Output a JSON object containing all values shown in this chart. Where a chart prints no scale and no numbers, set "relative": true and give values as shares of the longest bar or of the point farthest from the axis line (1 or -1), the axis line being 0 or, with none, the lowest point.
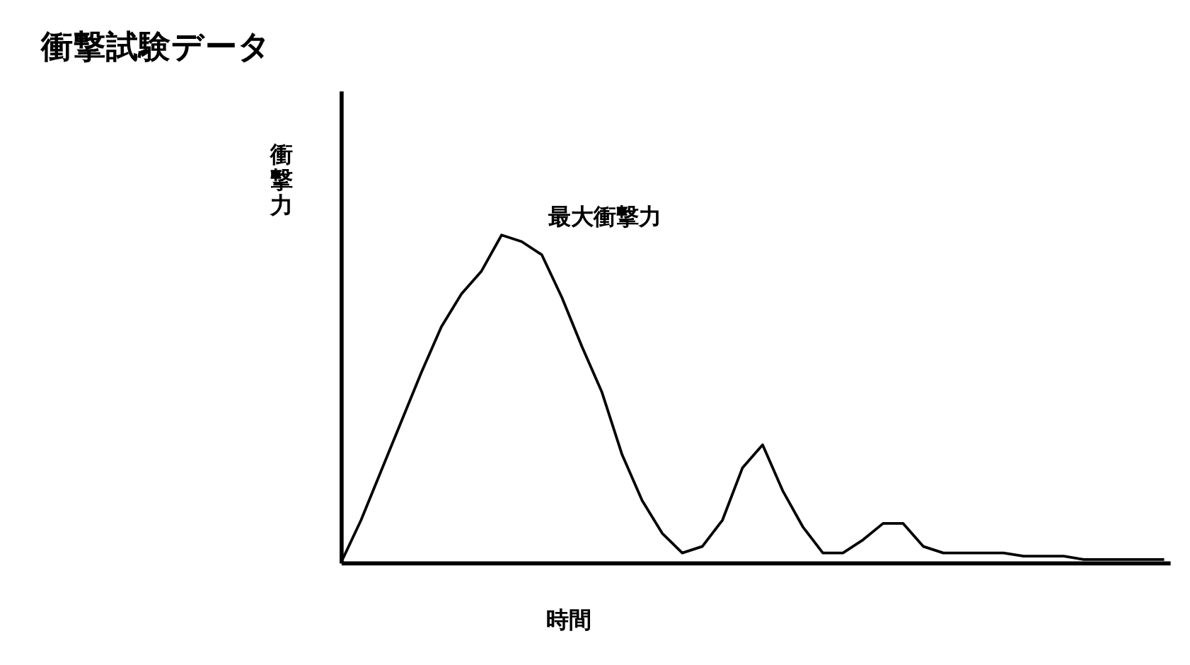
{
  "chart_data": {
    "type": "line",
    "title": "衝撃試験データ",
    "xlabel": "時間",
    "ylabel": "衝撃力",
    "relative": true,
    "color": "#000000",
    "grid": false,
    "marker": "none",
    "line_style": "solid",
    "categories": [
      null,
      null,
      null,
      null,
      null,
      null,
      null,
      null,
      null,
      null,
      null,
      null,
      null,
      null,
      null,
      null,
      null,
      null,
      null,
      null,
      null,
      null,
      null,
      null,
      null,
      null,
      null,
      null,
      null,
      null,
      null,
      null,
      null,
      null,
      null,
      null,
      null,
      null,
      null,
      null,
      null,
      null
    ],
    "values": [
      0,
      0.13,
      0.28,
      0.43,
      0.58,
      0.72,
      0.82,
      0.89,
      1,
      0.98,
      0.94,
      0.81,
      0.66,
      0.52,
      0.33,
      0.19,
      0.09,
      0.03,
      0.05,
      0.13,
      0.29,
      0.36,
      0.22,
      0.11,
      0.03,
      0.03,
      0.07,
      0.12,
      0.12,
      0.05,
      0.03,
      0.03,
      0.03,
      0.03,
      0.02,
      0.02,
      0.02,
      0.01,
      0.01,
      0.01,
      0.01,
      0.01
    ],
    "annotations": [
      "最大衝撃力"
    ]
  }
}
